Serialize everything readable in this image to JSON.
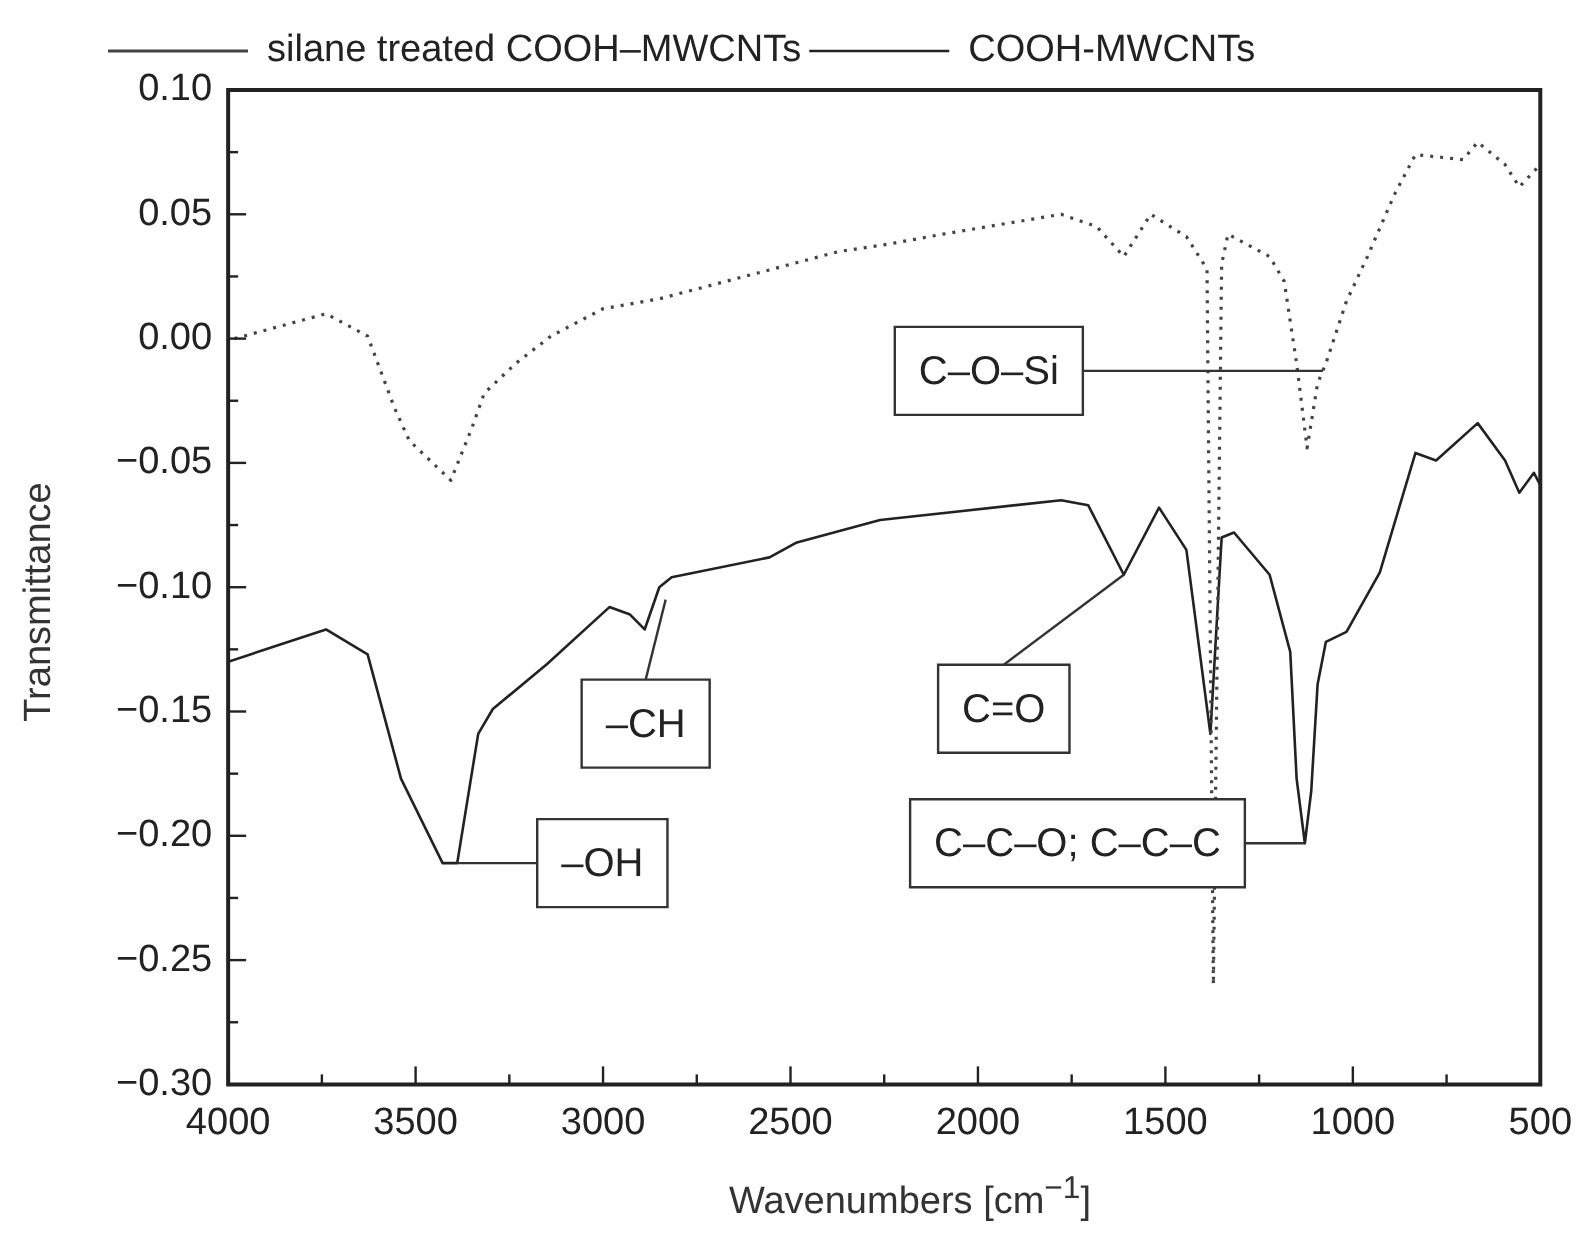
{
  "chart_data": {
    "type": "line",
    "xlabel": "Wavenumbers [cm$^{−1}$]",
    "ylabel": "Transmittance",
    "xlim": [
      4000,
      500
    ],
    "xticks": [
      4000,
      {
        "value": 3750,
        "label": null
      },
      3500,
      {
        "value": 3250,
        "label": null
      },
      3000,
      {
        "value": 2750,
        "label": null
      },
      2500,
      {
        "value": 2250,
        "label": null
      },
      2000,
      {
        "value": 1750,
        "label": null
      },
      1500,
      {
        "value": 1250,
        "label": null
      },
      1000,
      {
        "value": 750,
        "label": null
      },
      500
    ],
    "ylim": [
      -0.3,
      0.1
    ],
    "yticks": [
      {
        "value": -0.3,
        "label": "−0.30"
      },
      {
        "value": -0.275,
        "label": null
      },
      {
        "value": -0.25,
        "label": "−0.25"
      },
      {
        "value": -0.225,
        "label": null
      },
      {
        "value": -0.2,
        "label": "−0.20"
      },
      {
        "value": -0.175,
        "label": null
      },
      {
        "value": -0.15,
        "label": "−0.15"
      },
      {
        "value": -0.125,
        "label": null
      },
      {
        "value": -0.1,
        "label": "−0.10"
      },
      {
        "value": -0.075,
        "label": null
      },
      {
        "value": -0.05,
        "label": "−0.05"
      },
      {
        "value": -0.025,
        "label": null
      },
      {
        "value": 0,
        "label": "0.00"
      },
      {
        "value": 0.025,
        "label": null
      },
      {
        "value": 0.05,
        "label": "0.05"
      },
      {
        "value": 0.075,
        "label": null
      },
      {
        "value": 0.1,
        "label": "0.10"
      }
    ],
    "grid": false,
    "legend": "top left",
    "marker": "none",
    "series": [
      {
        "name": "silane treated COOH–MWCNTs",
        "color": "#444444",
        "line_style": "dotted",
        "x": [
          3983,
          3739,
          3628,
          3556,
          3517,
          3406,
          3350,
          3317,
          3233,
          3139,
          3000,
          2850,
          2572,
          2372,
          2239,
          2094,
          1778,
          1683,
          1611,
          1539,
          1444,
          1389,
          1372,
          1350,
          1333,
          1222,
          1183,
          1150,
          1122,
          1094,
          1072,
          1017,
          961,
          889,
          833,
          706,
          667,
          594,
          556,
          500
        ],
        "values": [
          0.0,
          0.01,
          0.001,
          -0.028,
          -0.041,
          -0.057,
          -0.036,
          -0.022,
          -0.01,
          0.001,
          0.012,
          0.016,
          0.027,
          0.035,
          0.038,
          0.042,
          0.05,
          0.045,
          0.033,
          0.05,
          0.041,
          0.028,
          -0.26,
          0.03,
          0.042,
          0.033,
          0.023,
          -0.01,
          -0.044,
          -0.018,
          -0.01,
          0.015,
          0.033,
          0.058,
          0.074,
          0.072,
          0.079,
          0.07,
          0.061,
          0.07
        ]
      },
      {
        "name": "COOH-MWCNTs",
        "color": "#222222",
        "line_style": "solid",
        "x": [
          4000,
          3739,
          3628,
          3539,
          3428,
          3389,
          3333,
          3294,
          3150,
          2983,
          2928,
          2889,
          2850,
          2817,
          2556,
          2483,
          2261,
          1778,
          1706,
          1611,
          1517,
          1444,
          1380,
          1350,
          1317,
          1222,
          1167,
          1150,
          1128,
          1111,
          1094,
          1072,
          1017,
          928,
          833,
          778,
          667,
          594,
          556,
          517,
          500
        ],
        "values": [
          -0.13,
          -0.117,
          -0.127,
          -0.177,
          -0.211,
          -0.211,
          -0.159,
          -0.149,
          -0.131,
          -0.108,
          -0.111,
          -0.117,
          -0.1,
          -0.096,
          -0.088,
          -0.082,
          -0.073,
          -0.065,
          -0.067,
          -0.095,
          -0.068,
          -0.085,
          -0.159,
          -0.08,
          -0.078,
          -0.095,
          -0.126,
          -0.177,
          -0.203,
          -0.182,
          -0.139,
          -0.122,
          -0.118,
          -0.094,
          -0.046,
          -0.049,
          -0.034,
          -0.049,
          -0.062,
          -0.054,
          -0.059
        ]
      }
    ],
    "annotations": [
      {
        "text": "C–O–Si",
        "x": 1080,
        "y": -0.013
      },
      {
        "text": "–CH",
        "x": 2833,
        "y": -0.105
      },
      {
        "text": "C=O",
        "x": 1611,
        "y": -0.095
      },
      {
        "text": "–OH",
        "x": 3389,
        "y": -0.211
      },
      {
        "text": "C–C–O; C–C–C",
        "x": 1128,
        "y": -0.203
      }
    ]
  }
}
